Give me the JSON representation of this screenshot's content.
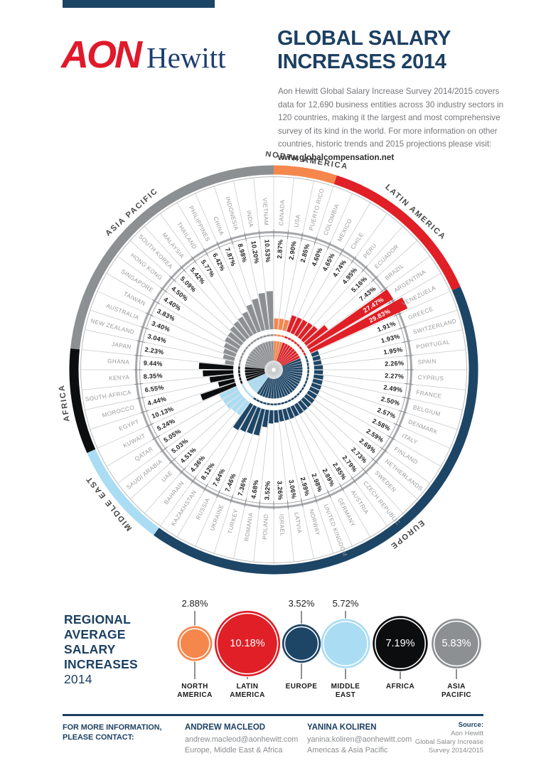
{
  "header": {
    "logo_aon": "AON",
    "logo_hewitt": "Hewitt",
    "title_line1": "GLOBAL SALARY",
    "title_line2": "INCREASES 2014",
    "intro_text": "Aon Hewitt Global Salary Increase Survey 2014/2015 covers data for 12,690 business entities across 30 industry sectors in 120 countries, making it the largest and most comprehensive survey of its kind in the world. For more information on other countries, historic trends and 2015 projections please visit: ",
    "intro_link": "www.globalcompensation.net"
  },
  "colors": {
    "navy": "#1D4566",
    "red": "#E01F26",
    "orange": "#F5874D",
    "lightblue": "#AADCF4",
    "black": "#0C0D0F",
    "gray": "#8D9093"
  },
  "chart_data": [
    {
      "type": "radial-bar",
      "unit": "%",
      "legend_note": "countries grouped by region, arranged clockwise",
      "regions": [
        {
          "name": "NORTH AMERICA",
          "color": "#F5874D"
        },
        {
          "name": "LATIN AMERICA",
          "color": "#E01F26"
        },
        {
          "name": "EUROPE",
          "color": "#1D4566"
        },
        {
          "name": "MIDDLE EAST",
          "color": "#AADCF4"
        },
        {
          "name": "AFRICA",
          "color": "#0C0D0F"
        },
        {
          "name": "ASIA PACIFIC",
          "color": "#8D9093"
        }
      ],
      "countries": [
        {
          "name": "CANADA",
          "value": 2.87,
          "region": "NORTH AMERICA"
        },
        {
          "name": "USA",
          "value": 2.9,
          "region": "NORTH AMERICA"
        },
        {
          "name": "PUERTO RICO",
          "value": 2.85,
          "region": "NORTH AMERICA"
        },
        {
          "name": "COLOMBIA",
          "value": 4.6,
          "region": "LATIN AMERICA"
        },
        {
          "name": "MEXICO",
          "value": 4.65,
          "region": "LATIN AMERICA"
        },
        {
          "name": "CHILE",
          "value": 4.74,
          "region": "LATIN AMERICA"
        },
        {
          "name": "PERU",
          "value": 4.95,
          "region": "LATIN AMERICA"
        },
        {
          "name": "ECUADOR",
          "value": 5.16,
          "region": "LATIN AMERICA"
        },
        {
          "name": "BRAZIL",
          "value": 7.43,
          "region": "LATIN AMERICA"
        },
        {
          "name": "ARGENTINA",
          "value": 27.47,
          "region": "LATIN AMERICA"
        },
        {
          "name": "VENEZUELA",
          "value": 29.83,
          "region": "LATIN AMERICA"
        },
        {
          "name": "GREECE",
          "value": 1.91,
          "region": "EUROPE"
        },
        {
          "name": "SWITZERLAND",
          "value": 1.93,
          "region": "EUROPE"
        },
        {
          "name": "PORTUGAL",
          "value": 1.95,
          "region": "EUROPE"
        },
        {
          "name": "SPAIN",
          "value": 2.26,
          "region": "EUROPE"
        },
        {
          "name": "CYPRUS",
          "value": 2.27,
          "region": "EUROPE"
        },
        {
          "name": "FRANCE",
          "value": 2.49,
          "region": "EUROPE"
        },
        {
          "name": "BELGIUM",
          "value": 2.5,
          "region": "EUROPE"
        },
        {
          "name": "DENMARK",
          "value": 2.57,
          "region": "EUROPE"
        },
        {
          "name": "ITALY",
          "value": 2.58,
          "region": "EUROPE"
        },
        {
          "name": "FINLAND",
          "value": 2.59,
          "region": "EUROPE"
        },
        {
          "name": "NETHERLANDS",
          "value": 2.69,
          "region": "EUROPE"
        },
        {
          "name": "SWEDEN",
          "value": 2.73,
          "region": "EUROPE"
        },
        {
          "name": "CZECH REPUBLIC",
          "value": 2.79,
          "region": "EUROPE"
        },
        {
          "name": "AUSTRIA",
          "value": 2.85,
          "region": "EUROPE"
        },
        {
          "name": "GERMANY",
          "value": 2.89,
          "region": "EUROPE"
        },
        {
          "name": "UNITED KINGDOM",
          "value": 2.98,
          "region": "EUROPE"
        },
        {
          "name": "NORWAY",
          "value": 2.99,
          "region": "EUROPE"
        },
        {
          "name": "LATVIA",
          "value": 3.06,
          "region": "EUROPE"
        },
        {
          "name": "ISRAEL",
          "value": 3.26,
          "region": "EUROPE"
        },
        {
          "name": "POLAND",
          "value": 3.52,
          "region": "EUROPE"
        },
        {
          "name": "ROMANIA",
          "value": 4.68,
          "region": "EUROPE"
        },
        {
          "name": "TURKEY",
          "value": 7.36,
          "region": "EUROPE"
        },
        {
          "name": "UKRAINE",
          "value": 7.46,
          "region": "EUROPE"
        },
        {
          "name": "RUSSIA",
          "value": 7.64,
          "region": "EUROPE"
        },
        {
          "name": "KAZAKHSTAN",
          "value": 8.12,
          "region": "EUROPE"
        },
        {
          "name": "BAHRAIN",
          "value": 4.36,
          "region": "MIDDLE EAST"
        },
        {
          "name": "UAE",
          "value": 4.51,
          "region": "MIDDLE EAST"
        },
        {
          "name": "SAUDI ARABIA",
          "value": 5.03,
          "region": "MIDDLE EAST"
        },
        {
          "name": "QATAR",
          "value": 5.05,
          "region": "MIDDLE EAST"
        },
        {
          "name": "KUWAIT",
          "value": 5.24,
          "region": "MIDDLE EAST"
        },
        {
          "name": "EGYPT",
          "value": 10.13,
          "region": "AFRICA"
        },
        {
          "name": "MOROCCO",
          "value": 4.44,
          "region": "AFRICA"
        },
        {
          "name": "SOUTH AFRICA",
          "value": 6.55,
          "region": "AFRICA"
        },
        {
          "name": "KENYA",
          "value": 8.35,
          "region": "AFRICA"
        },
        {
          "name": "GHANA",
          "value": 9.44,
          "region": "AFRICA"
        },
        {
          "name": "JAPAN",
          "value": 2.23,
          "region": "ASIA PACIFIC"
        },
        {
          "name": "NEW ZEALAND",
          "value": 3.04,
          "region": "ASIA PACIFIC"
        },
        {
          "name": "AUSTRALIA",
          "value": 3.4,
          "region": "ASIA PACIFIC"
        },
        {
          "name": "TAIWAN",
          "value": 3.83,
          "region": "ASIA PACIFIC"
        },
        {
          "name": "SINGAPORE",
          "value": 4.4,
          "region": "ASIA PACIFIC"
        },
        {
          "name": "HONG KONG",
          "value": 4.5,
          "region": "ASIA PACIFIC"
        },
        {
          "name": "SOUTH KOREA",
          "value": 5.09,
          "region": "ASIA PACIFIC"
        },
        {
          "name": "MALAYSIA",
          "value": 5.42,
          "region": "ASIA PACIFIC"
        },
        {
          "name": "THAILAND",
          "value": 5.77,
          "region": "ASIA PACIFIC"
        },
        {
          "name": "PHILIPPINES",
          "value": 6.42,
          "region": "ASIA PACIFIC"
        },
        {
          "name": "CHINA",
          "value": 7.87,
          "region": "ASIA PACIFIC"
        },
        {
          "name": "INDONESIA",
          "value": 8.98,
          "region": "ASIA PACIFIC"
        },
        {
          "name": "INDIA",
          "value": 10.2,
          "region": "ASIA PACIFIC"
        },
        {
          "name": "VIETNAM",
          "value": 10.53,
          "region": "ASIA PACIFIC"
        }
      ]
    },
    {
      "type": "bubble",
      "title_lines": [
        "REGIONAL",
        "AVERAGE",
        "SALARY",
        "INCREASES"
      ],
      "year": "2014",
      "unit": "%",
      "items": [
        {
          "label_lines": [
            "NORTH",
            "AMERICA"
          ],
          "value": 2.88,
          "color": "#F5874D",
          "value_pos": "above"
        },
        {
          "label_lines": [
            "LATIN",
            "AMERICA"
          ],
          "value": 10.18,
          "color": "#E01F26",
          "value_pos": "inside"
        },
        {
          "label_lines": [
            "EUROPE"
          ],
          "value": 3.52,
          "color": "#1D4566",
          "value_pos": "above"
        },
        {
          "label_lines": [
            "MIDDLE",
            "EAST"
          ],
          "value": 5.72,
          "color": "#AADCF4",
          "value_pos": "above"
        },
        {
          "label_lines": [
            "AFRICA"
          ],
          "value": 7.19,
          "color": "#0C0D0F",
          "value_pos": "inside"
        },
        {
          "label_lines": [
            "ASIA",
            "PACIFIC"
          ],
          "value": 5.83,
          "color": "#8D9093",
          "value_pos": "inside"
        }
      ]
    }
  ],
  "footer": {
    "contact_heading": [
      "FOR MORE INFORMATION,",
      "PLEASE CONTACT:"
    ],
    "contacts": [
      {
        "name": "ANDREW MACLEOD",
        "email": "andrew.macleod@aonhewitt.com",
        "scope": "Europe, Middle East & Africa"
      },
      {
        "name": "YANINA KOLIREN",
        "email": "yanina.koliren@aonhewitt.com",
        "scope": "Americas & Asia Pacific"
      }
    ],
    "source": {
      "label": "Source:",
      "lines": [
        "Aon Hewitt",
        "Global Salary Increase",
        "Survey 2014/2015"
      ]
    }
  }
}
